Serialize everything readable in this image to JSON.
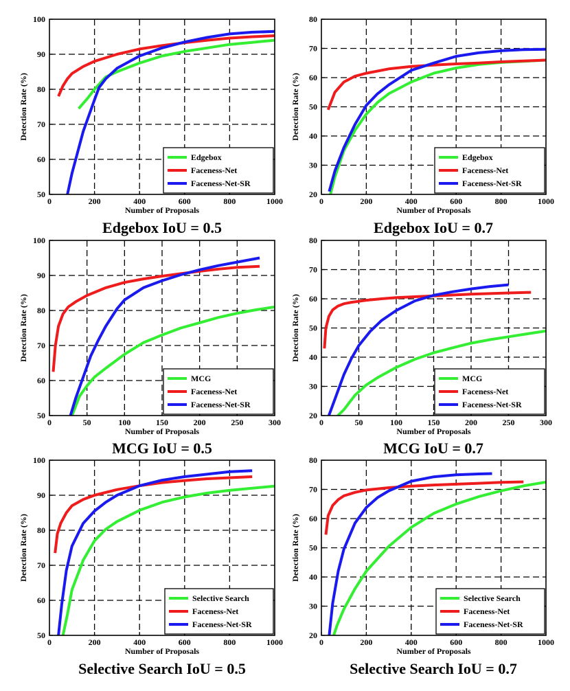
{
  "colors": {
    "green": "#33ee33",
    "red": "#ee1c1c",
    "blue": "#1a1aee",
    "grid": "#000000"
  },
  "chart_data": [
    {
      "type": "line",
      "title": "Edgebox IoU = 0.5",
      "xlabel": "Number of Proposals",
      "ylabel": "Detection Rate (%)",
      "xlim": [
        0,
        1000
      ],
      "ylim": [
        50,
        100
      ],
      "xticks": [
        0,
        200,
        400,
        600,
        800,
        1000
      ],
      "yticks": [
        50,
        60,
        70,
        80,
        90,
        100
      ],
      "legend_position": "bottom-right",
      "grid": true,
      "series": [
        {
          "name": "Edgebox",
          "color_key": "green",
          "x": [
            130,
            170,
            200,
            250,
            300,
            400,
            500,
            600,
            700,
            800,
            900,
            1000
          ],
          "y": [
            74.5,
            77.5,
            80,
            83.5,
            85,
            87.5,
            89.5,
            90.8,
            91.8,
            92.8,
            93.4,
            94
          ]
        },
        {
          "name": "Faceness-Net",
          "color_key": "red",
          "x": [
            40,
            60,
            80,
            100,
            150,
            200,
            250,
            300,
            400,
            500,
            600,
            700,
            800,
            900,
            1000
          ],
          "y": [
            78,
            81,
            83,
            84.5,
            86.5,
            88,
            89,
            90,
            91.5,
            92.5,
            93.3,
            94,
            94.6,
            95,
            95.3
          ]
        },
        {
          "name": "Faceness-Net-SR",
          "color_key": "blue",
          "x": [
            80,
            100,
            150,
            200,
            220,
            250,
            300,
            400,
            500,
            600,
            700,
            800,
            900,
            1000
          ],
          "y": [
            50,
            56,
            68,
            77,
            80.5,
            83,
            86,
            89.5,
            91.8,
            93.5,
            94.8,
            95.8,
            96.3,
            96.5
          ]
        }
      ]
    },
    {
      "type": "line",
      "title": "Edgebox IoU = 0.7",
      "xlabel": "Number of Proposals",
      "ylabel": "Detection Rate (%)",
      "xlim": [
        0,
        1000
      ],
      "ylim": [
        20,
        80
      ],
      "xticks": [
        0,
        200,
        400,
        600,
        800,
        1000
      ],
      "yticks": [
        20,
        30,
        40,
        50,
        60,
        70,
        80
      ],
      "legend_position": "bottom-right",
      "grid": true,
      "series": [
        {
          "name": "Edgebox",
          "color_key": "green",
          "x": [
            40,
            60,
            100,
            150,
            200,
            250,
            300,
            400,
            500,
            600,
            700,
            800,
            900,
            1000
          ],
          "y": [
            20,
            26,
            35,
            42,
            47.5,
            51.5,
            54.5,
            58.5,
            61.5,
            63.3,
            64.5,
            65.2,
            65.6,
            66
          ]
        },
        {
          "name": "Faceness-Net",
          "color_key": "red",
          "x": [
            30,
            60,
            100,
            150,
            200,
            300,
            400,
            500,
            600,
            700,
            800,
            900,
            1000
          ],
          "y": [
            49,
            55,
            58.5,
            60.5,
            61.5,
            63,
            63.8,
            64.3,
            64.7,
            65,
            65.4,
            65.7,
            66
          ]
        },
        {
          "name": "Faceness-Net-SR",
          "color_key": "blue",
          "x": [
            35,
            60,
            100,
            150,
            200,
            250,
            300,
            400,
            500,
            600,
            700,
            800,
            900,
            1000
          ],
          "y": [
            21,
            28,
            36,
            44,
            50.5,
            54.5,
            57.5,
            62.5,
            65,
            67.3,
            68.5,
            69.2,
            69.6,
            69.7
          ]
        }
      ]
    },
    {
      "type": "line",
      "title": "MCG IoU = 0.5",
      "xlabel": "Number of Proposals",
      "ylabel": "Detection Rate (%)",
      "xlim": [
        0,
        300
      ],
      "ylim": [
        50,
        100
      ],
      "xticks": [
        0,
        50,
        100,
        150,
        200,
        250,
        300
      ],
      "yticks": [
        50,
        60,
        70,
        80,
        90,
        100
      ],
      "legend_position": "bottom-right",
      "grid": true,
      "series": [
        {
          "name": "MCG",
          "color_key": "green",
          "x": [
            30,
            40,
            50,
            60,
            75,
            100,
            125,
            150,
            175,
            200,
            225,
            250,
            275,
            300
          ],
          "y": [
            50,
            55.5,
            58.5,
            61,
            63.5,
            67.5,
            70.8,
            73,
            75,
            76.5,
            78,
            79.2,
            80.2,
            81
          ]
        },
        {
          "name": "Faceness-Net",
          "color_key": "red",
          "x": [
            5,
            8,
            12,
            18,
            25,
            35,
            50,
            75,
            100,
            125,
            150,
            175,
            200,
            225,
            250,
            280
          ],
          "y": [
            62.5,
            70,
            75.5,
            79,
            81,
            82.5,
            84.3,
            86.5,
            88,
            89,
            89.8,
            90.5,
            91.2,
            91.8,
            92.3,
            92.6
          ]
        },
        {
          "name": "Faceness-Net-SR",
          "color_key": "blue",
          "x": [
            28,
            35,
            45,
            55,
            65,
            75,
            90,
            100,
            125,
            150,
            175,
            200,
            225,
            250,
            280
          ],
          "y": [
            50,
            55,
            61,
            67,
            71.5,
            75.5,
            80.5,
            83,
            86.5,
            88.5,
            90.2,
            91.6,
            92.8,
            93.8,
            95
          ]
        }
      ]
    },
    {
      "type": "line",
      "title": "MCG IoU = 0.7",
      "xlabel": "Number of Proposals",
      "ylabel": "Detection Rate (%)",
      "xlim": [
        0,
        300
      ],
      "ylim": [
        20,
        80
      ],
      "xticks": [
        0,
        50,
        100,
        150,
        200,
        250,
        300
      ],
      "yticks": [
        20,
        30,
        40,
        50,
        60,
        70,
        80
      ],
      "legend_position": "bottom-right",
      "grid": true,
      "series": [
        {
          "name": "MCG",
          "color_key": "green",
          "x": [
            22,
            30,
            45,
            60,
            75,
            100,
            125,
            150,
            175,
            200,
            225,
            250,
            275,
            300
          ],
          "y": [
            20,
            22,
            27,
            30.5,
            33,
            36.5,
            39.3,
            41.5,
            43.2,
            44.8,
            46,
            47,
            48,
            49
          ]
        },
        {
          "name": "Faceness-Net",
          "color_key": "red",
          "x": [
            4,
            6,
            10,
            15,
            22,
            30,
            40,
            60,
            80,
            100,
            150,
            200,
            250,
            280
          ],
          "y": [
            43,
            50,
            54,
            56.2,
            57.5,
            58.3,
            58.8,
            59.5,
            60,
            60.4,
            61,
            61.6,
            62,
            62.2
          ]
        },
        {
          "name": "Faceness-Net-SR",
          "color_key": "blue",
          "x": [
            10,
            20,
            30,
            40,
            50,
            65,
            80,
            100,
            125,
            150,
            175,
            200,
            225,
            250
          ],
          "y": [
            20,
            27,
            34,
            39.5,
            44,
            48.8,
            52.5,
            56,
            59.3,
            61.2,
            62.4,
            63.4,
            64.2,
            64.8
          ]
        }
      ]
    },
    {
      "type": "line",
      "title": "Selective Search IoU = 0.5",
      "xlabel": "Number of Proposals",
      "ylabel": "Detection Rate (%)",
      "xlim": [
        0,
        1000
      ],
      "ylim": [
        50,
        100
      ],
      "xticks": [
        0,
        200,
        400,
        600,
        800,
        1000
      ],
      "yticks": [
        50,
        60,
        70,
        80,
        90,
        100
      ],
      "legend_position": "bottom-right",
      "grid": true,
      "series": [
        {
          "name": "Selective Search",
          "color_key": "green",
          "x": [
            60,
            80,
            100,
            150,
            200,
            250,
            300,
            400,
            500,
            600,
            700,
            800,
            900,
            1000
          ],
          "y": [
            50,
            56,
            63,
            71.5,
            77,
            80.3,
            82.5,
            85.7,
            88,
            89.5,
            90.6,
            91.4,
            92,
            92.6
          ]
        },
        {
          "name": "Faceness-Net",
          "color_key": "red",
          "x": [
            25,
            35,
            50,
            75,
            100,
            150,
            200,
            300,
            400,
            500,
            600,
            700,
            800,
            900
          ],
          "y": [
            73.5,
            79,
            82,
            85,
            87,
            88.8,
            90,
            91.6,
            92.7,
            93.6,
            94.2,
            94.7,
            95,
            95.3
          ]
        },
        {
          "name": "Faceness-Net-SR",
          "color_key": "blue",
          "x": [
            40,
            55,
            75,
            100,
            150,
            200,
            250,
            300,
            400,
            500,
            600,
            700,
            800,
            900
          ],
          "y": [
            50,
            59,
            68.5,
            75.5,
            82,
            85.5,
            88,
            90,
            92.7,
            94.3,
            95.3,
            96,
            96.7,
            97
          ]
        }
      ]
    },
    {
      "type": "line",
      "title": "Selective Search IoU = 0.7",
      "xlabel": "Number of Proposals",
      "ylabel": "Detection Rate (%)",
      "xlim": [
        0,
        1000
      ],
      "ylim": [
        20,
        80
      ],
      "xticks": [
        0,
        200,
        400,
        600,
        800,
        1000
      ],
      "yticks": [
        20,
        30,
        40,
        50,
        60,
        70,
        80
      ],
      "legend_position": "bottom-right",
      "grid": true,
      "series": [
        {
          "name": "Selective Search",
          "color_key": "green",
          "x": [
            55,
            70,
            100,
            150,
            200,
            300,
            400,
            500,
            600,
            700,
            800,
            900,
            1000
          ],
          "y": [
            20,
            23.5,
            29,
            36,
            42,
            50.5,
            57,
            61.8,
            65,
            67.5,
            69.5,
            71.2,
            72.5
          ]
        },
        {
          "name": "Faceness-Net",
          "color_key": "red",
          "x": [
            20,
            30,
            50,
            75,
            100,
            150,
            200,
            300,
            400,
            500,
            600,
            700,
            800,
            900
          ],
          "y": [
            54.5,
            61,
            64.5,
            66.5,
            67.8,
            69,
            69.8,
            70.6,
            71.1,
            71.5,
            71.8,
            72.1,
            72.4,
            72.6
          ]
        },
        {
          "name": "Faceness-Net-SR",
          "color_key": "blue",
          "x": [
            35,
            50,
            75,
            100,
            150,
            200,
            250,
            300,
            400,
            500,
            600,
            700,
            760
          ],
          "y": [
            20,
            31,
            42,
            49.5,
            58.5,
            63.8,
            67.2,
            69.5,
            72.8,
            74.3,
            75,
            75.3,
            75.4
          ]
        }
      ]
    }
  ]
}
